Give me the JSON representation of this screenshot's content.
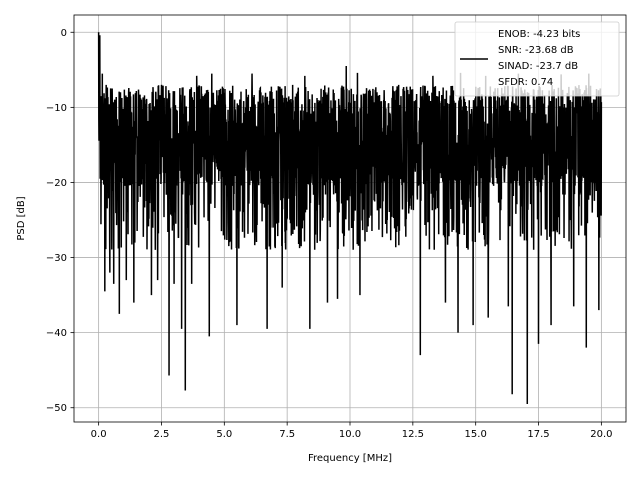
{
  "chart_data": {
    "type": "line",
    "title": "",
    "xlabel": "Frequency [MHz]",
    "ylabel": "PSD [dB]",
    "xlim": [
      -0.98,
      20.98
    ],
    "ylim": [
      -51.9,
      2.3
    ],
    "xticks": [
      0.0,
      2.5,
      5.0,
      7.5,
      10.0,
      12.5,
      15.0,
      17.5,
      20.0
    ],
    "xtick_labels": [
      "0.0",
      "2.5",
      "5.0",
      "7.5",
      "10.0",
      "12.5",
      "15.0",
      "17.5",
      "20.0"
    ],
    "yticks": [
      0,
      -10,
      -20,
      -30,
      -40,
      -50
    ],
    "ytick_labels": [
      "0",
      "−10",
      "−20",
      "−30",
      "−40",
      "−50"
    ],
    "grid": true,
    "legend": {
      "placement": "top-right",
      "entries": [
        "ENOB: -4.23 bits",
        "SNR: -23.68 dB",
        "SINAD: -23.7 dB",
        "SFDR: 0.74"
      ]
    },
    "series": [
      {
        "color": "#000000",
        "x_range": [
          0,
          20
        ],
        "baseline_db": -16,
        "noise_band_db": [
          -29,
          -7
        ],
        "start_peak_db": 0,
        "dips": [
          {
            "x": 0.25,
            "y": -34.5
          },
          {
            "x": 0.45,
            "y": -32
          },
          {
            "x": 0.6,
            "y": -33.5
          },
          {
            "x": 0.82,
            "y": -37.5
          },
          {
            "x": 1.1,
            "y": -33
          },
          {
            "x": 1.4,
            "y": -36
          },
          {
            "x": 2.1,
            "y": -35
          },
          {
            "x": 2.35,
            "y": -33
          },
          {
            "x": 2.8,
            "y": -45.7
          },
          {
            "x": 3.0,
            "y": -33.5
          },
          {
            "x": 3.3,
            "y": -39.5
          },
          {
            "x": 3.45,
            "y": -47.7
          },
          {
            "x": 3.7,
            "y": -33.5
          },
          {
            "x": 4.4,
            "y": -40.5
          },
          {
            "x": 5.5,
            "y": -39
          },
          {
            "x": 6.7,
            "y": -39.5
          },
          {
            "x": 7.3,
            "y": -34
          },
          {
            "x": 8.4,
            "y": -39.5
          },
          {
            "x": 9.1,
            "y": -36
          },
          {
            "x": 9.5,
            "y": -35.5
          },
          {
            "x": 10.4,
            "y": -35
          },
          {
            "x": 12.8,
            "y": -43
          },
          {
            "x": 13.8,
            "y": -36
          },
          {
            "x": 14.3,
            "y": -40
          },
          {
            "x": 14.9,
            "y": -39
          },
          {
            "x": 15.5,
            "y": -38
          },
          {
            "x": 16.3,
            "y": -36.5
          },
          {
            "x": 16.45,
            "y": -48.2
          },
          {
            "x": 17.05,
            "y": -49.5
          },
          {
            "x": 17.5,
            "y": -41.5
          },
          {
            "x": 18.0,
            "y": -39
          },
          {
            "x": 18.9,
            "y": -36.5
          },
          {
            "x": 19.4,
            "y": -42
          },
          {
            "x": 19.9,
            "y": -37
          }
        ],
        "peaks": [
          {
            "x": 0.05,
            "y": -0.4
          },
          {
            "x": 0.15,
            "y": -5.5
          },
          {
            "x": 0.3,
            "y": -7
          },
          {
            "x": 3.9,
            "y": -5.8
          },
          {
            "x": 4.5,
            "y": -5.5
          },
          {
            "x": 6.1,
            "y": -5.5
          },
          {
            "x": 8.2,
            "y": -5.8
          },
          {
            "x": 9.85,
            "y": -4.5
          },
          {
            "x": 10.3,
            "y": -5.4
          },
          {
            "x": 13.3,
            "y": -5.8
          },
          {
            "x": 14.4,
            "y": -5.4
          },
          {
            "x": 15.4,
            "y": -5.8
          },
          {
            "x": 16.7,
            "y": -5.5
          },
          {
            "x": 18.4,
            "y": -5.6
          },
          {
            "x": 19.5,
            "y": -5.5
          }
        ]
      }
    ]
  }
}
